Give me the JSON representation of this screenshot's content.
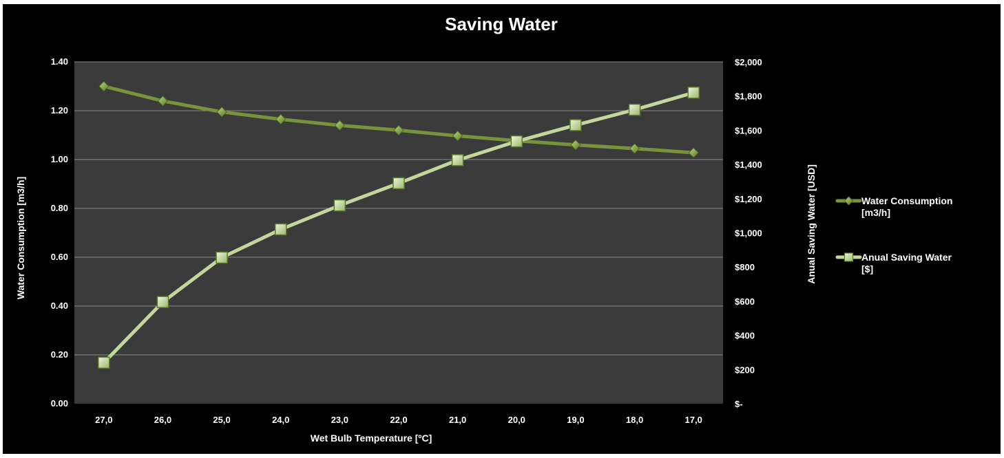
{
  "chart_data": {
    "type": "line",
    "title": "Saving Water",
    "xlabel": "Wet Bulb Temperature [ºC]",
    "ylabel_left": "Water Consumption [m3/h]",
    "ylabel_right": "Anual Saving Water [USD]",
    "categories": [
      "27,0",
      "26,0",
      "25,0",
      "24,0",
      "23,0",
      "22,0",
      "21,0",
      "20,0",
      "19,0",
      "18,0",
      "17,0"
    ],
    "y_left_ticks": [
      "0.00",
      "0.20",
      "0.40",
      "0.60",
      "0.80",
      "1.00",
      "1.20",
      "1.40"
    ],
    "y_right_ticks": [
      "$-",
      "$200",
      "$400",
      "$600",
      "$800",
      "$1,000",
      "$1,200",
      "$1,400",
      "$1,600",
      "$1,800",
      "$2,000"
    ],
    "ylim_left": [
      0,
      1.4
    ],
    "ylim_right": [
      0,
      2000
    ],
    "grid": true,
    "legend_position": "right",
    "series": [
      {
        "name_line1": "Water Consumption",
        "name_line2": "[m3/h]",
        "axis": "left",
        "marker": "diamond",
        "color": "#77933c",
        "values": [
          1.3,
          1.24,
          1.195,
          1.165,
          1.14,
          1.12,
          1.097,
          1.077,
          1.06,
          1.045,
          1.028
        ]
      },
      {
        "name_line1": "Anual Saving Water",
        "name_line2": "[$]",
        "axis": "right",
        "marker": "square",
        "color": "#c3d69b",
        "values": [
          240,
          595,
          855,
          1020,
          1160,
          1290,
          1425,
          1535,
          1630,
          1720,
          1820
        ]
      }
    ]
  }
}
